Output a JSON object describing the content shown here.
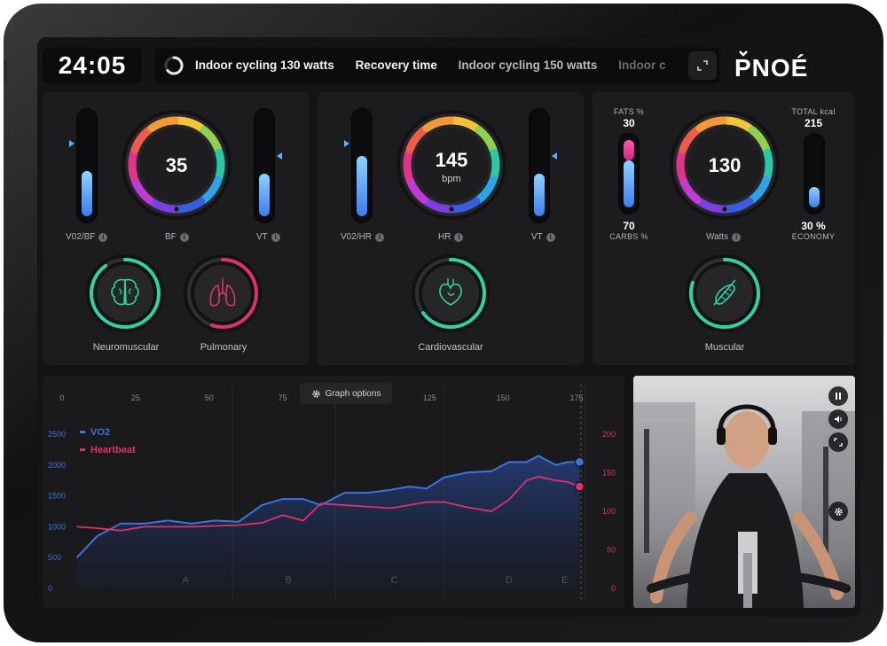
{
  "top": {
    "timer": "24:05",
    "workouts": [
      {
        "label": "Indoor cycling 130 watts"
      },
      {
        "label": "Recovery time"
      },
      {
        "label": "Indoor cycling 150 watts"
      },
      {
        "label": "Indoor c"
      }
    ],
    "brand": "PNOÉ"
  },
  "panels": {
    "bf": {
      "left_label": "V02/BF",
      "center_label": "BF",
      "right_label": "VT",
      "dial_value": "35",
      "left_level": 0.45,
      "right_level": 0.42
    },
    "hr": {
      "left_label": "V02/HR",
      "center_label": "HR",
      "right_label": "VT",
      "dial_value": "145",
      "dial_unit": "bpm",
      "left_level": 0.6,
      "right_level": 0.42
    },
    "watts": {
      "center_label": "Watts",
      "dial_value": "130",
      "fats_caption": "FATS %",
      "fats_value": "30",
      "carbs_value": "70",
      "carbs_caption": "CARBS %",
      "total_caption": "TOTAL kcal",
      "total_value": "215",
      "economy_value": "30 %",
      "economy_caption": "ECONOMY",
      "fats_level": 0.3,
      "carbs_level": 0.7,
      "economy_level": 0.3
    }
  },
  "systems": [
    {
      "label": "Neuromuscular",
      "level": 0.9
    },
    {
      "label": "Pulmonary",
      "level": 0.55
    },
    {
      "label": "Cardiovascular",
      "level": 0.65
    },
    {
      "label": "Muscular",
      "level": 0.8
    }
  ],
  "graph": {
    "options_label": "Graph options",
    "x_ticks": [
      "0",
      "25",
      "50",
      "75",
      "100",
      "125",
      "150",
      "175"
    ],
    "left_ticks": [
      "2500",
      "2000",
      "1500",
      "1000",
      "500",
      "0"
    ],
    "right_ticks": [
      "200",
      "150",
      "100",
      "50",
      "0"
    ],
    "zones": [
      "A",
      "B",
      "C",
      "D",
      "E"
    ]
  },
  "colors": {
    "vo2": "#3a74e0",
    "heartbeat": "#e0306e",
    "accent_green": "#2ed3a0"
  },
  "chart_data": {
    "type": "line",
    "title": "",
    "x": [
      5,
      12,
      20,
      28,
      36,
      44,
      52,
      60,
      68,
      75,
      82,
      88,
      96,
      104,
      112,
      118,
      124,
      130,
      138,
      146,
      152,
      158,
      162,
      168,
      172,
      176
    ],
    "series": [
      {
        "name": "VO2",
        "axis": "left",
        "values": [
          500,
          850,
          1050,
          1050,
          1100,
          1050,
          1100,
          1080,
          1350,
          1450,
          1450,
          1350,
          1550,
          1550,
          1600,
          1650,
          1620,
          1800,
          1880,
          1900,
          2050,
          2050,
          2150,
          2000,
          2050,
          2050
        ]
      },
      {
        "name": "Heartbeat",
        "axis": "right",
        "values": [
          80,
          78,
          75,
          80,
          80,
          80,
          81,
          82,
          85,
          95,
          88,
          110,
          108,
          106,
          104,
          108,
          112,
          112,
          105,
          100,
          115,
          140,
          145,
          140,
          138,
          132
        ]
      }
    ],
    "xlim": [
      0,
      178
    ],
    "ylim_left": [
      0,
      2500
    ],
    "ylim_right": [
      0,
      200
    ],
    "legend": "top-left",
    "grid": true
  }
}
